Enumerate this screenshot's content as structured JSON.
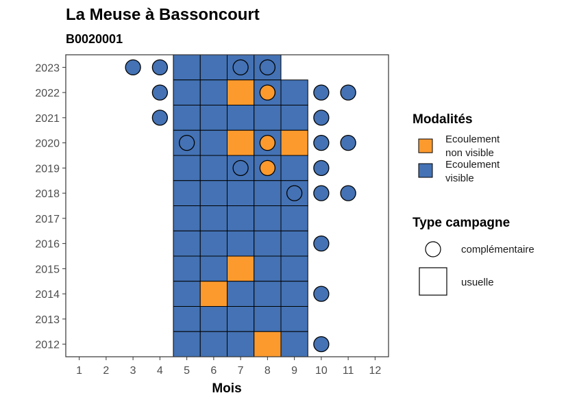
{
  "title": "La Meuse à Bassoncourt",
  "subtitle": "B0020001",
  "colors": {
    "visible": "#4472b4",
    "non_visible": "#fd9a2e",
    "outline": "#000000",
    "panel_border": "#333333"
  },
  "legend": {
    "modalites": {
      "title": "Modalités",
      "items": [
        {
          "key": "non_visible",
          "line1": "Ecoulement",
          "line2": "non visible"
        },
        {
          "key": "visible",
          "line1": "Ecoulement",
          "line2": "visible"
        }
      ]
    },
    "campagne": {
      "title": "Type campagne",
      "items": [
        {
          "key": "circle",
          "label": "complémentaire"
        },
        {
          "key": "square",
          "label": "usuelle"
        }
      ]
    }
  },
  "chart_data": {
    "type": "heatmap",
    "xlabel": "Mois",
    "ylabel": "",
    "x_ticks": [
      1,
      2,
      3,
      4,
      5,
      6,
      7,
      8,
      9,
      10,
      11,
      12
    ],
    "y_ticks": [
      2012,
      2013,
      2014,
      2015,
      2016,
      2017,
      2018,
      2019,
      2020,
      2021,
      2022,
      2023
    ],
    "xlim": [
      0.5,
      12.5
    ],
    "ylim": [
      2011.5,
      2023.5
    ],
    "grid": false,
    "legend_position": "right",
    "usuelle": [
      {
        "year": 2023,
        "month": 5,
        "value": "visible"
      },
      {
        "year": 2023,
        "month": 6,
        "value": "visible"
      },
      {
        "year": 2023,
        "month": 7,
        "value": "visible"
      },
      {
        "year": 2023,
        "month": 8,
        "value": "visible"
      },
      {
        "year": 2022,
        "month": 5,
        "value": "visible"
      },
      {
        "year": 2022,
        "month": 6,
        "value": "visible"
      },
      {
        "year": 2022,
        "month": 7,
        "value": "non_visible"
      },
      {
        "year": 2022,
        "month": 8,
        "value": "visible"
      },
      {
        "year": 2022,
        "month": 9,
        "value": "visible"
      },
      {
        "year": 2021,
        "month": 5,
        "value": "visible"
      },
      {
        "year": 2021,
        "month": 6,
        "value": "visible"
      },
      {
        "year": 2021,
        "month": 7,
        "value": "visible"
      },
      {
        "year": 2021,
        "month": 8,
        "value": "visible"
      },
      {
        "year": 2021,
        "month": 9,
        "value": "visible"
      },
      {
        "year": 2020,
        "month": 5,
        "value": "visible"
      },
      {
        "year": 2020,
        "month": 6,
        "value": "visible"
      },
      {
        "year": 2020,
        "month": 7,
        "value": "non_visible"
      },
      {
        "year": 2020,
        "month": 8,
        "value": "visible"
      },
      {
        "year": 2020,
        "month": 9,
        "value": "non_visible"
      },
      {
        "year": 2019,
        "month": 5,
        "value": "visible"
      },
      {
        "year": 2019,
        "month": 6,
        "value": "visible"
      },
      {
        "year": 2019,
        "month": 7,
        "value": "visible"
      },
      {
        "year": 2019,
        "month": 8,
        "value": "visible"
      },
      {
        "year": 2019,
        "month": 9,
        "value": "visible"
      },
      {
        "year": 2018,
        "month": 5,
        "value": "visible"
      },
      {
        "year": 2018,
        "month": 6,
        "value": "visible"
      },
      {
        "year": 2018,
        "month": 7,
        "value": "visible"
      },
      {
        "year": 2018,
        "month": 8,
        "value": "visible"
      },
      {
        "year": 2018,
        "month": 9,
        "value": "visible"
      },
      {
        "year": 2017,
        "month": 5,
        "value": "visible"
      },
      {
        "year": 2017,
        "month": 6,
        "value": "visible"
      },
      {
        "year": 2017,
        "month": 7,
        "value": "visible"
      },
      {
        "year": 2017,
        "month": 8,
        "value": "visible"
      },
      {
        "year": 2017,
        "month": 9,
        "value": "visible"
      },
      {
        "year": 2016,
        "month": 5,
        "value": "visible"
      },
      {
        "year": 2016,
        "month": 6,
        "value": "visible"
      },
      {
        "year": 2016,
        "month": 7,
        "value": "visible"
      },
      {
        "year": 2016,
        "month": 8,
        "value": "visible"
      },
      {
        "year": 2016,
        "month": 9,
        "value": "visible"
      },
      {
        "year": 2015,
        "month": 5,
        "value": "visible"
      },
      {
        "year": 2015,
        "month": 6,
        "value": "visible"
      },
      {
        "year": 2015,
        "month": 7,
        "value": "non_visible"
      },
      {
        "year": 2015,
        "month": 8,
        "value": "visible"
      },
      {
        "year": 2015,
        "month": 9,
        "value": "visible"
      },
      {
        "year": 2014,
        "month": 5,
        "value": "visible"
      },
      {
        "year": 2014,
        "month": 6,
        "value": "non_visible"
      },
      {
        "year": 2014,
        "month": 7,
        "value": "visible"
      },
      {
        "year": 2014,
        "month": 8,
        "value": "visible"
      },
      {
        "year": 2014,
        "month": 9,
        "value": "visible"
      },
      {
        "year": 2013,
        "month": 5,
        "value": "visible"
      },
      {
        "year": 2013,
        "month": 6,
        "value": "visible"
      },
      {
        "year": 2013,
        "month": 7,
        "value": "visible"
      },
      {
        "year": 2013,
        "month": 8,
        "value": "visible"
      },
      {
        "year": 2013,
        "month": 9,
        "value": "visible"
      },
      {
        "year": 2012,
        "month": 5,
        "value": "visible"
      },
      {
        "year": 2012,
        "month": 6,
        "value": "visible"
      },
      {
        "year": 2012,
        "month": 7,
        "value": "visible"
      },
      {
        "year": 2012,
        "month": 8,
        "value": "non_visible"
      },
      {
        "year": 2012,
        "month": 9,
        "value": "visible"
      }
    ],
    "complementaire": [
      {
        "year": 2023,
        "month": 3,
        "value": "visible"
      },
      {
        "year": 2023,
        "month": 4,
        "value": "visible"
      },
      {
        "year": 2023,
        "month": 7,
        "value": "visible"
      },
      {
        "year": 2023,
        "month": 8,
        "value": "visible"
      },
      {
        "year": 2022,
        "month": 4,
        "value": "visible"
      },
      {
        "year": 2022,
        "month": 8,
        "value": "non_visible"
      },
      {
        "year": 2022,
        "month": 10,
        "value": "visible"
      },
      {
        "year": 2022,
        "month": 11,
        "value": "visible"
      },
      {
        "year": 2021,
        "month": 4,
        "value": "visible"
      },
      {
        "year": 2021,
        "month": 10,
        "value": "visible"
      },
      {
        "year": 2020,
        "month": 5,
        "value": "visible"
      },
      {
        "year": 2020,
        "month": 8,
        "value": "non_visible"
      },
      {
        "year": 2020,
        "month": 10,
        "value": "visible"
      },
      {
        "year": 2020,
        "month": 11,
        "value": "visible"
      },
      {
        "year": 2019,
        "month": 7,
        "value": "visible"
      },
      {
        "year": 2019,
        "month": 8,
        "value": "non_visible"
      },
      {
        "year": 2019,
        "month": 10,
        "value": "visible"
      },
      {
        "year": 2018,
        "month": 9,
        "value": "visible"
      },
      {
        "year": 2018,
        "month": 10,
        "value": "visible"
      },
      {
        "year": 2018,
        "month": 11,
        "value": "visible"
      },
      {
        "year": 2016,
        "month": 10,
        "value": "visible"
      },
      {
        "year": 2014,
        "month": 10,
        "value": "visible"
      },
      {
        "year": 2012,
        "month": 10,
        "value": "visible"
      }
    ]
  }
}
